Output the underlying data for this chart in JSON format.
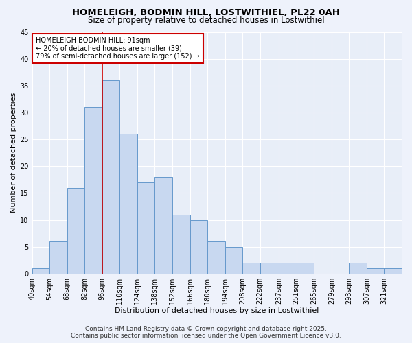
{
  "title1": "HOMELEIGH, BODMIN HILL, LOSTWITHIEL, PL22 0AH",
  "title2": "Size of property relative to detached houses in Lostwithiel",
  "xlabel": "Distribution of detached houses by size in Lostwithiel",
  "ylabel": "Number of detached properties",
  "bin_labels": [
    "40sqm",
    "54sqm",
    "68sqm",
    "82sqm",
    "96sqm",
    "110sqm",
    "124sqm",
    "138sqm",
    "152sqm",
    "166sqm",
    "180sqm",
    "194sqm",
    "208sqm",
    "222sqm",
    "237sqm",
    "251sqm",
    "265sqm",
    "279sqm",
    "293sqm",
    "307sqm",
    "321sqm"
  ],
  "bin_edges": [
    40,
    54,
    68,
    82,
    96,
    110,
    124,
    138,
    152,
    166,
    180,
    194,
    208,
    222,
    237,
    251,
    265,
    279,
    293,
    307,
    321,
    335
  ],
  "bar_heights": [
    1,
    6,
    16,
    31,
    36,
    26,
    17,
    18,
    11,
    10,
    6,
    5,
    2,
    2,
    2,
    2,
    0,
    0,
    2,
    1,
    1
  ],
  "bar_color": "#c8d8f0",
  "bar_edge_color": "#6699cc",
  "vline_x": 96,
  "vline_color": "#cc0000",
  "ylim": [
    0,
    45
  ],
  "yticks": [
    0,
    5,
    10,
    15,
    20,
    25,
    30,
    35,
    40,
    45
  ],
  "annotation_title": "HOMELEIGH BODMIN HILL: 91sqm",
  "annotation_line1": "← 20% of detached houses are smaller (39)",
  "annotation_line2": "79% of semi-detached houses are larger (152) →",
  "annotation_box_color": "#ffffff",
  "annotation_box_edge": "#cc0000",
  "footer1": "Contains HM Land Registry data © Crown copyright and database right 2025.",
  "footer2": "Contains public sector information licensed under the Open Government Licence v3.0.",
  "bg_color": "#eef2fb",
  "plot_bg_color": "#e8eef8",
  "grid_color": "#ffffff",
  "title_fontsize": 9.5,
  "subtitle_fontsize": 8.5,
  "axis_label_fontsize": 8,
  "tick_fontsize": 7,
  "annotation_fontsize": 7,
  "footer_fontsize": 6.5
}
